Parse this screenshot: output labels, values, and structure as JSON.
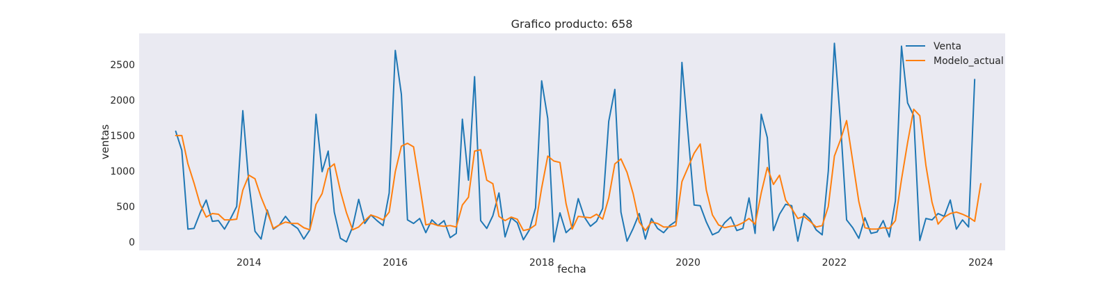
{
  "chart_data": {
    "type": "line",
    "title": "Grafico producto: 658",
    "xlabel": "fecha",
    "ylabel": "ventas",
    "x_start": "2013-01",
    "x_end": "2023-12",
    "xlim": [
      "2012-07",
      "2024-05"
    ],
    "ylim": [
      -120,
      2940
    ],
    "x_ticks": [
      {
        "label": "2014",
        "date": "2014-01"
      },
      {
        "label": "2016",
        "date": "2016-01"
      },
      {
        "label": "2018",
        "date": "2018-01"
      },
      {
        "label": "2020",
        "date": "2020-01"
      },
      {
        "label": "2022",
        "date": "2022-01"
      },
      {
        "label": "2024",
        "date": "2024-01"
      }
    ],
    "y_ticks": [
      0,
      500,
      1000,
      1500,
      2000,
      2500
    ],
    "grid": false,
    "background": "#eaeaf2",
    "legend_position": "top-right",
    "series": [
      {
        "name": "Venta",
        "color": "#1f77b4",
        "values": [
          1560,
          1290,
          180,
          190,
          410,
          590,
          290,
          300,
          180,
          330,
          500,
          1850,
          820,
          150,
          40,
          450,
          180,
          240,
          360,
          250,
          190,
          40,
          170,
          1800,
          990,
          1280,
          420,
          50,
          0,
          210,
          600,
          260,
          380,
          300,
          230,
          690,
          2700,
          2080,
          310,
          260,
          330,
          130,
          310,
          230,
          300,
          60,
          120,
          1730,
          870,
          2330,
          300,
          190,
          370,
          690,
          70,
          340,
          270,
          30,
          170,
          480,
          2270,
          1740,
          0,
          410,
          130,
          210,
          610,
          350,
          220,
          290,
          470,
          1700,
          2150,
          420,
          10,
          190,
          400,
          40,
          330,
          190,
          130,
          230,
          290,
          2530,
          1530,
          520,
          510,
          280,
          100,
          140,
          270,
          350,
          160,
          190,
          620,
          120,
          1800,
          1470,
          160,
          390,
          530,
          510,
          10,
          400,
          320,
          170,
          100,
          1000,
          2800,
          1680,
          310,
          200,
          50,
          340,
          120,
          140,
          300,
          70,
          580,
          2760,
          1960,
          1780,
          20,
          330,
          310,
          400,
          360,
          590,
          180,
          310,
          210,
          2290
        ]
      },
      {
        "name": "Modelo_actual",
        "color": "#ff7f0e",
        "values": [
          1500,
          1500,
          1100,
          830,
          530,
          350,
          400,
          390,
          310,
          310,
          320,
          730,
          940,
          890,
          630,
          420,
          190,
          240,
          280,
          260,
          260,
          200,
          170,
          530,
          680,
          1030,
          1100,
          720,
          410,
          170,
          210,
          300,
          380,
          350,
          310,
          420,
          990,
          1350,
          1390,
          1340,
          800,
          240,
          260,
          230,
          220,
          230,
          210,
          520,
          630,
          1280,
          1300,
          870,
          820,
          360,
          300,
          350,
          320,
          160,
          180,
          240,
          760,
          1210,
          1140,
          1120,
          540,
          180,
          360,
          350,
          340,
          390,
          320,
          620,
          1100,
          1170,
          980,
          680,
          280,
          160,
          280,
          260,
          210,
          210,
          230,
          850,
          1050,
          1250,
          1380,
          730,
          380,
          240,
          200,
          220,
          230,
          270,
          330,
          250,
          690,
          1050,
          810,
          940,
          590,
          470,
          330,
          360,
          290,
          210,
          230,
          500,
          1210,
          1440,
          1710,
          1140,
          570,
          200,
          180,
          180,
          200,
          190,
          300,
          880,
          1400,
          1870,
          1780,
          1080,
          560,
          250,
          350,
          400,
          420,
          390,
          350,
          290,
          820
        ]
      }
    ]
  }
}
